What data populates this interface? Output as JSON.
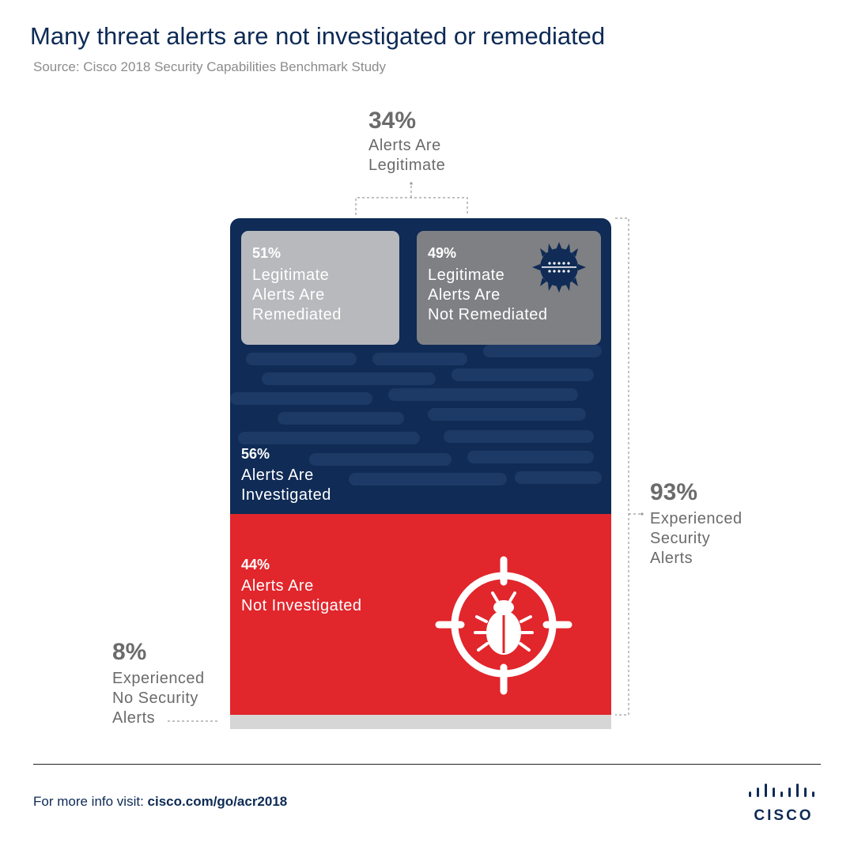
{
  "title": "Many threat alerts are not investigated or remediated",
  "source": "Source: Cisco 2018 Security Capabilities Benchmark Study",
  "chart_data": {
    "type": "stacked-proportion",
    "segments": [
      {
        "value": "34%",
        "label_line1": "Alerts Are",
        "label_line2": "Legitimate"
      },
      {
        "value": "51%",
        "label_line1": "Legitimate",
        "label_line2": "Alerts Are",
        "label_line3": "Remediated"
      },
      {
        "value": "49%",
        "label_line1": "Legitimate",
        "label_line2": "Alerts Are",
        "label_line3": "Not Remediated"
      },
      {
        "value": "56%",
        "label_line1": "Alerts Are",
        "label_line2": "Investigated"
      },
      {
        "value": "44%",
        "label_line1": "Alerts Are",
        "label_line2": "Not Investigated"
      },
      {
        "value": "93%",
        "label_line1": "Experienced",
        "label_line2": "Security",
        "label_line3": "Alerts"
      },
      {
        "value": "8%",
        "label_line1": "Experienced",
        "label_line2": "No Security",
        "label_line3": "Alerts"
      }
    ],
    "investigated_share": 0.56,
    "not_investigated_share": 0.44
  },
  "colors": {
    "navy": "#0f2b56",
    "red": "#e1262c",
    "light_gray": "#b8b9bc",
    "dark_gray": "#7f8083",
    "bottom_gray": "#d6d6d6"
  },
  "icons": {
    "virus": "virus-icon",
    "bug_target": "bug-target-icon",
    "logo": "cisco-logo"
  },
  "footer": {
    "prefix": "For more info visit: ",
    "link": "cisco.com/go/acr2018"
  },
  "logo_text": "CISCO"
}
